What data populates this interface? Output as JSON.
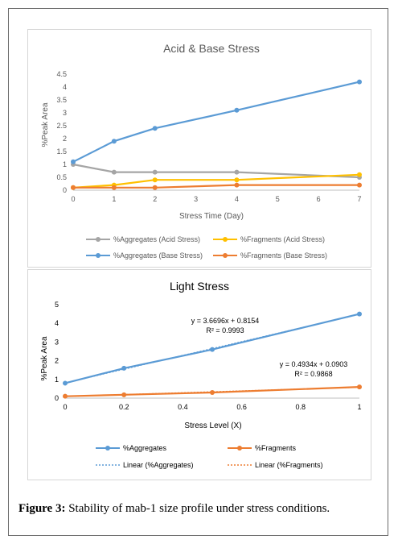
{
  "figure": {
    "label": "Figure 3:",
    "text": " Stability of mab-1 size profile under stress conditions."
  },
  "chart_data": [
    {
      "type": "line",
      "title": "Acid & Base Stress",
      "xlabel": "Stress Time (Day)",
      "ylabel": "%Peak Area",
      "xlim": [
        0,
        7
      ],
      "ylim": [
        0,
        4.5
      ],
      "xticks": [
        "0",
        "1",
        "2",
        "3",
        "4",
        "5",
        "6",
        "7"
      ],
      "yticks": [
        "0",
        "0.5",
        "1",
        "1.5",
        "2",
        "2.5",
        "3",
        "3.5",
        "4",
        "4.5"
      ],
      "grid": false,
      "legend_position": "bottom",
      "series": [
        {
          "name": "%Aggregates (Acid Stress)",
          "color": "#a5a5a5",
          "x": [
            0,
            1,
            2,
            4,
            7
          ],
          "y": [
            1.0,
            0.7,
            0.7,
            0.7,
            0.5
          ]
        },
        {
          "name": "%Fragments (Acid Stress)",
          "color": "#ffc000",
          "x": [
            0,
            1,
            2,
            4,
            7
          ],
          "y": [
            0.1,
            0.2,
            0.4,
            0.4,
            0.6
          ]
        },
        {
          "name": "%Aggregates (Base Stress)",
          "color": "#5b9bd5",
          "x": [
            0,
            1,
            2,
            4,
            7
          ],
          "y": [
            1.1,
            1.9,
            2.4,
            3.1,
            4.2
          ]
        },
        {
          "name": "%Fragments (Base Stress)",
          "color": "#ed7d31",
          "x": [
            0,
            1,
            2,
            4,
            7
          ],
          "y": [
            0.1,
            0.1,
            0.1,
            0.2,
            0.2
          ]
        }
      ]
    },
    {
      "type": "line",
      "title": "Light Stress",
      "xlabel": "Stress Level (X)",
      "ylabel": "%Peak Area",
      "xlim": [
        0,
        1
      ],
      "ylim": [
        0,
        5
      ],
      "xticks": [
        "0",
        "0.2",
        "0.4",
        "0.6",
        "0.8",
        "1"
      ],
      "yticks": [
        "0",
        "1",
        "2",
        "3",
        "4",
        "5"
      ],
      "grid": false,
      "legend_position": "bottom",
      "series": [
        {
          "name": "%Aggregates",
          "color": "#5b9bd5",
          "x": [
            0,
            0.2,
            0.5,
            1
          ],
          "y": [
            0.8,
            1.6,
            2.6,
            4.5
          ]
        },
        {
          "name": "%Fragments",
          "color": "#ed7d31",
          "x": [
            0,
            0.2,
            0.5,
            1
          ],
          "y": [
            0.1,
            0.18,
            0.3,
            0.6
          ]
        }
      ],
      "trendlines": [
        {
          "name": "Linear (%Aggregates)",
          "color": "#5b9bd5",
          "slope": 3.6696,
          "intercept": 0.8154,
          "equation": "y = 3.6696x + 0.8154",
          "r2": "R² = 0.9993"
        },
        {
          "name": "Linear (%Fragments)",
          "color": "#ed7d31",
          "slope": 0.4934,
          "intercept": 0.0903,
          "equation": "y = 0.4934x + 0.0903",
          "r2": "R² = 0.9868"
        }
      ]
    }
  ]
}
